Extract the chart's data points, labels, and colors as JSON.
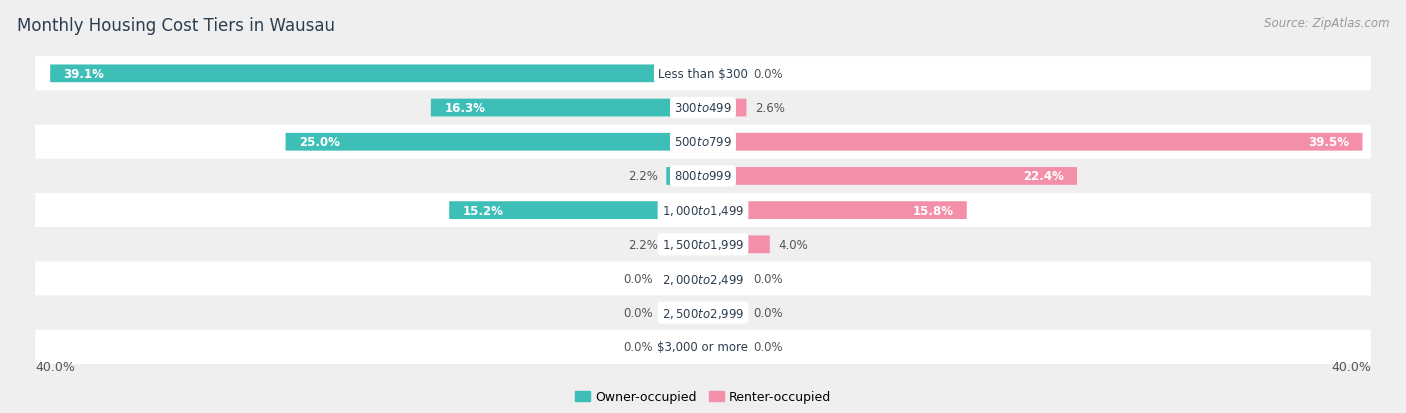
{
  "title": "Monthly Housing Cost Tiers in Wausau",
  "source": "Source: ZipAtlas.com",
  "categories": [
    "Less than $300",
    "$300 to $499",
    "$500 to $799",
    "$800 to $999",
    "$1,000 to $1,499",
    "$1,500 to $1,999",
    "$2,000 to $2,499",
    "$2,500 to $2,999",
    "$3,000 or more"
  ],
  "owner_values": [
    39.1,
    16.3,
    25.0,
    2.2,
    15.2,
    2.2,
    0.0,
    0.0,
    0.0
  ],
  "renter_values": [
    0.0,
    2.6,
    39.5,
    22.4,
    15.8,
    4.0,
    0.0,
    0.0,
    0.0
  ],
  "owner_color": "#3DBFB8",
  "renter_color": "#F48FAA",
  "owner_label": "Owner-occupied",
  "renter_label": "Renter-occupied",
  "xlim_left": -40,
  "xlim_right": 40,
  "bar_height": 0.52,
  "bg_color": "#efefef",
  "row_bg_even": "#ffffff",
  "row_bg_odd": "#efefef",
  "axis_label_left": "40.0%",
  "axis_label_right": "40.0%",
  "title_fontsize": 12,
  "source_fontsize": 8.5,
  "label_fontsize": 9,
  "category_fontsize": 8.5,
  "value_fontsize": 8.5,
  "legend_fontsize": 9,
  "stub_size": 2.5
}
